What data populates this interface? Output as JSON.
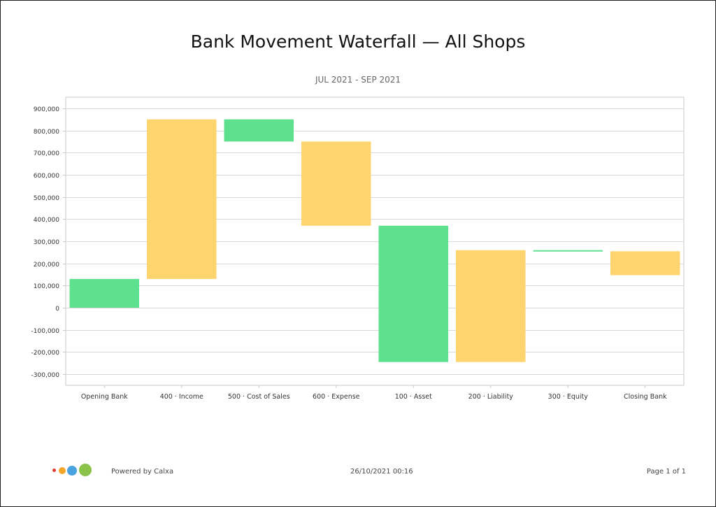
{
  "report": {
    "title": "Bank Movement Waterfall — All Shops",
    "subtitle": "JUL 2021 - SEP 2021"
  },
  "footer": {
    "powered_by": "Powered by Calxa",
    "timestamp": "26/10/2021 00:16",
    "page": "Page 1 of 1",
    "logo_dot_colors": [
      "#e53935",
      "#f4a62a",
      "#4aa3e0",
      "#8bc34a"
    ]
  },
  "colors": {
    "green": "#5ee18f",
    "yellow": "#fed46e",
    "grid": "#d8d8d8",
    "axis": "#c8c8c8",
    "label": "#333333"
  },
  "chart_data": {
    "type": "bar",
    "subtype": "waterfall",
    "categories": [
      "Opening Bank",
      "400 · Income",
      "500 · Cost of Sales",
      "600 · Expense",
      "100 · Asset",
      "200 · Liability",
      "300 · Equity",
      "Closing Bank"
    ],
    "ranges": [
      [
        0,
        130000
      ],
      [
        130000,
        850000
      ],
      [
        750000,
        850000
      ],
      [
        370000,
        750000
      ],
      [
        -245000,
        370000
      ],
      [
        -245000,
        260000
      ],
      [
        255000,
        260000
      ],
      [
        147000,
        255000
      ]
    ],
    "bar_colors": [
      "green",
      "yellow",
      "green",
      "yellow",
      "green",
      "yellow",
      "green",
      "yellow"
    ],
    "ylim": [
      -350000,
      950000
    ],
    "yticks": [
      900000,
      800000,
      700000,
      600000,
      500000,
      400000,
      300000,
      200000,
      100000,
      0,
      -100000,
      -200000,
      -300000
    ],
    "ytick_labels": [
      "900,000",
      "800,000",
      "700,000",
      "600,000",
      "500,000",
      "400,000",
      "300,000",
      "200,000",
      "100,000",
      "0",
      "-100,000",
      "-200,000",
      "-300,000"
    ],
    "grid": true,
    "legend": "none"
  }
}
